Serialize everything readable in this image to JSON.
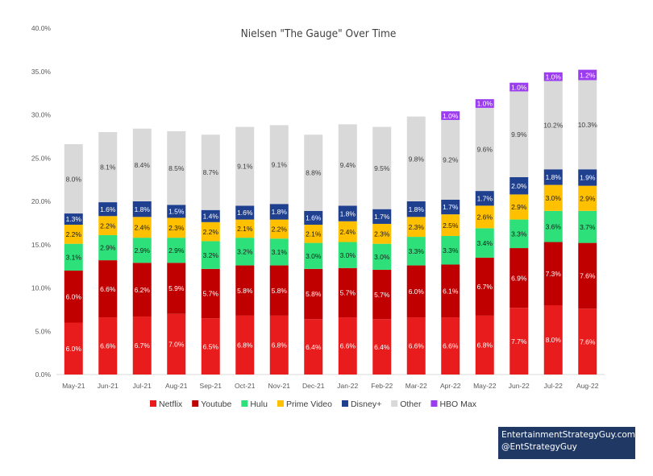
{
  "chart_data": {
    "type": "bar",
    "stacked": true,
    "title": "Nielsen \"The Gauge\" Over Time",
    "ylim": [
      0,
      40
    ],
    "yticks": [
      "0.0%",
      "5.0%",
      "10.0%",
      "15.0%",
      "20.0%",
      "25.0%",
      "30.0%",
      "35.0%",
      "40.0%"
    ],
    "ytick_values": [
      0,
      5,
      10,
      15,
      20,
      25,
      30,
      35,
      40
    ],
    "grid": false,
    "legend_position": "bottom",
    "categories": [
      "May-21",
      "Jun-21",
      "Jul-21",
      "Aug-21",
      "Sep-21",
      "Oct-21",
      "Nov-21",
      "Dec-21",
      "Jan-22",
      "Feb-22",
      "Mar-22",
      "Apr-22",
      "May-22",
      "Jun-22",
      "Jul-22",
      "Aug-22"
    ],
    "series": [
      {
        "name": "Netflix",
        "color": "#e81c1c",
        "label_color": "#ffffff",
        "values": [
          6.0,
          6.6,
          6.7,
          7.0,
          6.5,
          6.8,
          6.8,
          6.4,
          6.6,
          6.4,
          6.6,
          6.6,
          6.8,
          7.7,
          8.0,
          7.6
        ],
        "labels": [
          "6.0%",
          "6.6%",
          "6.7%",
          "7.0%",
          "6.5%",
          "6.8%",
          "6.8%",
          "6.4%",
          "6.6%",
          "6.4%",
          "6.6%",
          "6.6%",
          "6.8%",
          "7.7%",
          "8.0%",
          "7.6%"
        ]
      },
      {
        "name": "Youtube",
        "color": "#c00000",
        "label_color": "#ffffff",
        "values": [
          6.0,
          6.6,
          6.2,
          5.9,
          5.7,
          5.8,
          5.8,
          5.8,
          5.7,
          5.7,
          6.0,
          6.1,
          6.7,
          6.9,
          7.3,
          7.6
        ],
        "labels": [
          "6.0%",
          "6.6%",
          "6.2%",
          "5.9%",
          "5.7%",
          "5.8%",
          "5.8%",
          "5.8%",
          "5.7%",
          "5.7%",
          "6.0%",
          "6.1%",
          "6.7%",
          "6.9%",
          "7.3%",
          "7.6%"
        ]
      },
      {
        "name": "Hulu",
        "color": "#2ee07a",
        "label_color": "#1a1a1a",
        "values": [
          3.1,
          2.9,
          2.9,
          2.9,
          3.2,
          3.2,
          3.1,
          3.0,
          3.0,
          3.0,
          3.3,
          3.3,
          3.4,
          3.3,
          3.6,
          3.7
        ],
        "labels": [
          "3.1%",
          "2.9%",
          "2.9%",
          "2.9%",
          "3.2%",
          "3.2%",
          "3.1%",
          "3.0%",
          "3.0%",
          "3.0%",
          "3.3%",
          "3.3%",
          "3.4%",
          "3.3%",
          "3.6%",
          "3.7%"
        ]
      },
      {
        "name": "Prime Video",
        "color": "#ffc000",
        "label_color": "#1a1a1a",
        "values": [
          2.2,
          2.2,
          2.4,
          2.3,
          2.2,
          2.1,
          2.2,
          2.1,
          2.4,
          2.3,
          2.3,
          2.5,
          2.6,
          2.9,
          3.0,
          2.9
        ],
        "labels": [
          "2.2%",
          "2.2%",
          "2.4%",
          "2.3%",
          "2.2%",
          "2.1%",
          "2.2%",
          "2.1%",
          "2.4%",
          "2.3%",
          "2.3%",
          "2.5%",
          "2.6%",
          "2.9%",
          "3.0%",
          "2.9%"
        ]
      },
      {
        "name": "Disney+",
        "color": "#1f3f8f",
        "label_color": "#ffffff",
        "values": [
          1.3,
          1.6,
          1.8,
          1.5,
          1.4,
          1.6,
          1.8,
          1.6,
          1.8,
          1.7,
          1.8,
          1.7,
          1.7,
          2.0,
          1.8,
          1.9
        ],
        "labels": [
          "1.3%",
          "1.6%",
          "1.8%",
          "1.5%",
          "1.4%",
          "1.6%",
          "1.8%",
          "1.6%",
          "1.8%",
          "1.7%",
          "1.8%",
          "1.7%",
          "1.7%",
          "2.0%",
          "1.8%",
          "1.9%"
        ]
      },
      {
        "name": "Other",
        "color": "#d9d9d9",
        "label_color": "#404040",
        "values": [
          8.0,
          8.1,
          8.4,
          8.5,
          8.7,
          9.1,
          9.1,
          8.8,
          9.4,
          9.5,
          9.8,
          9.2,
          9.6,
          9.9,
          10.2,
          10.3
        ],
        "labels": [
          "8.0%",
          "8.1%",
          "8.4%",
          "8.5%",
          "8.7%",
          "9.1%",
          "9.1%",
          "8.8%",
          "9.4%",
          "9.5%",
          "9.8%",
          "9.2%",
          "9.6%",
          "9.9%",
          "10.2%",
          "10.3%"
        ]
      },
      {
        "name": "HBO Max",
        "color": "#9b3cf0",
        "label_color": "#ffffff",
        "values": [
          null,
          null,
          null,
          null,
          null,
          null,
          null,
          null,
          null,
          null,
          null,
          1.0,
          1.0,
          1.0,
          1.0,
          1.2
        ],
        "labels": [
          null,
          null,
          null,
          null,
          null,
          null,
          null,
          null,
          null,
          null,
          null,
          "1.0%",
          "1.0%",
          "1.0%",
          "1.0%",
          "1.2%"
        ]
      }
    ]
  },
  "credit": {
    "line1": "EntertainmentStrategyGuy.com",
    "line2": "@EntStrategyGuy"
  }
}
